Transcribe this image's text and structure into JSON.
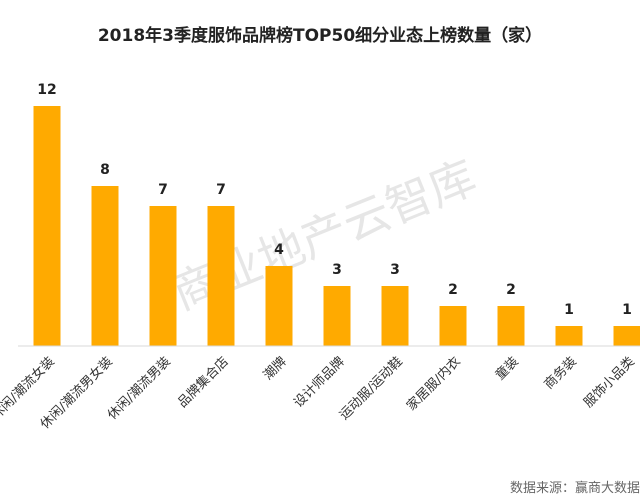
{
  "chart_data": {
    "type": "bar",
    "title": "2018年3季度服饰品牌榜TOP50细分业态上榜数量（家）",
    "categories": [
      "休闲/潮流女装",
      "休闲/潮流男女装",
      "休闲/潮流男装",
      "品牌集合店",
      "潮牌",
      "设计师品牌",
      "运动服/运动鞋",
      "家居服/内衣",
      "童装",
      "商务装",
      "服饰小品类"
    ],
    "values": [
      12,
      8,
      7,
      7,
      4,
      3,
      3,
      2,
      2,
      1,
      1
    ],
    "xlabel": "",
    "ylabel": "",
    "ylim": [
      0,
      13
    ],
    "grid": false,
    "legend": "none",
    "bar_color": "#FFAA00"
  },
  "watermark": "商业地产云智库",
  "source": "数据来源：赢商大数据"
}
